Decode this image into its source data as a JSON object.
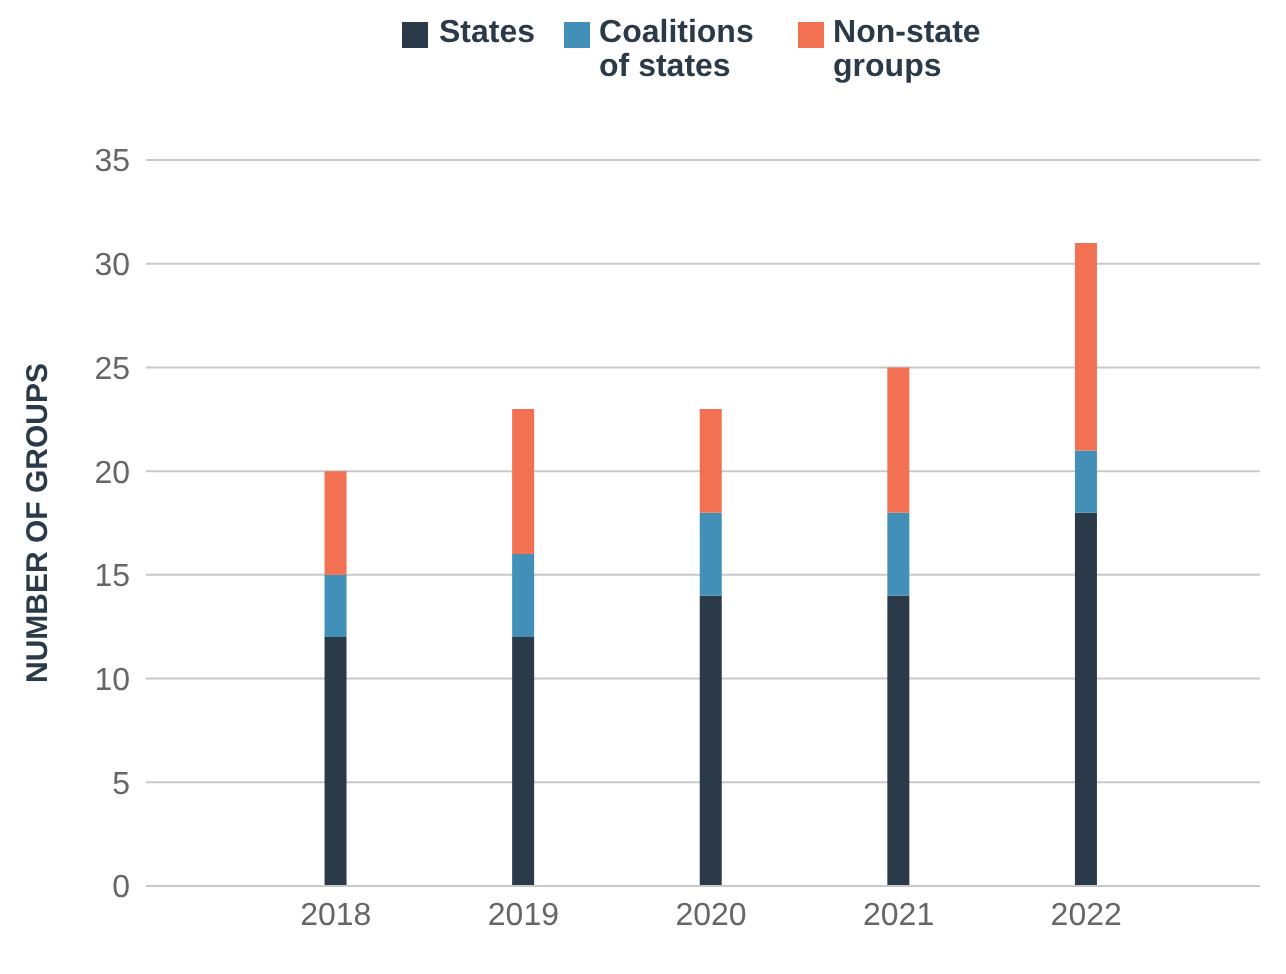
{
  "chart_data": {
    "type": "bar",
    "stacked": true,
    "categories": [
      "2018",
      "2019",
      "2020",
      "2021",
      "2022"
    ],
    "series": [
      {
        "name": "States",
        "color": "#2b3a48",
        "values": [
          12,
          12,
          14,
          14,
          18
        ]
      },
      {
        "name": "Coalitions of states",
        "color": "#428fb7",
        "values": [
          3,
          4,
          4,
          4,
          3
        ]
      },
      {
        "name": "Non-state groups",
        "color": "#f27152",
        "values": [
          5,
          7,
          5,
          7,
          10
        ]
      }
    ],
    "ylabel": "NUMBER OF GROUPS",
    "ylim": [
      0,
      35
    ],
    "yticks": [
      0,
      5,
      10,
      15,
      20,
      25,
      30,
      35
    ],
    "grid": "y",
    "legend": "top"
  }
}
